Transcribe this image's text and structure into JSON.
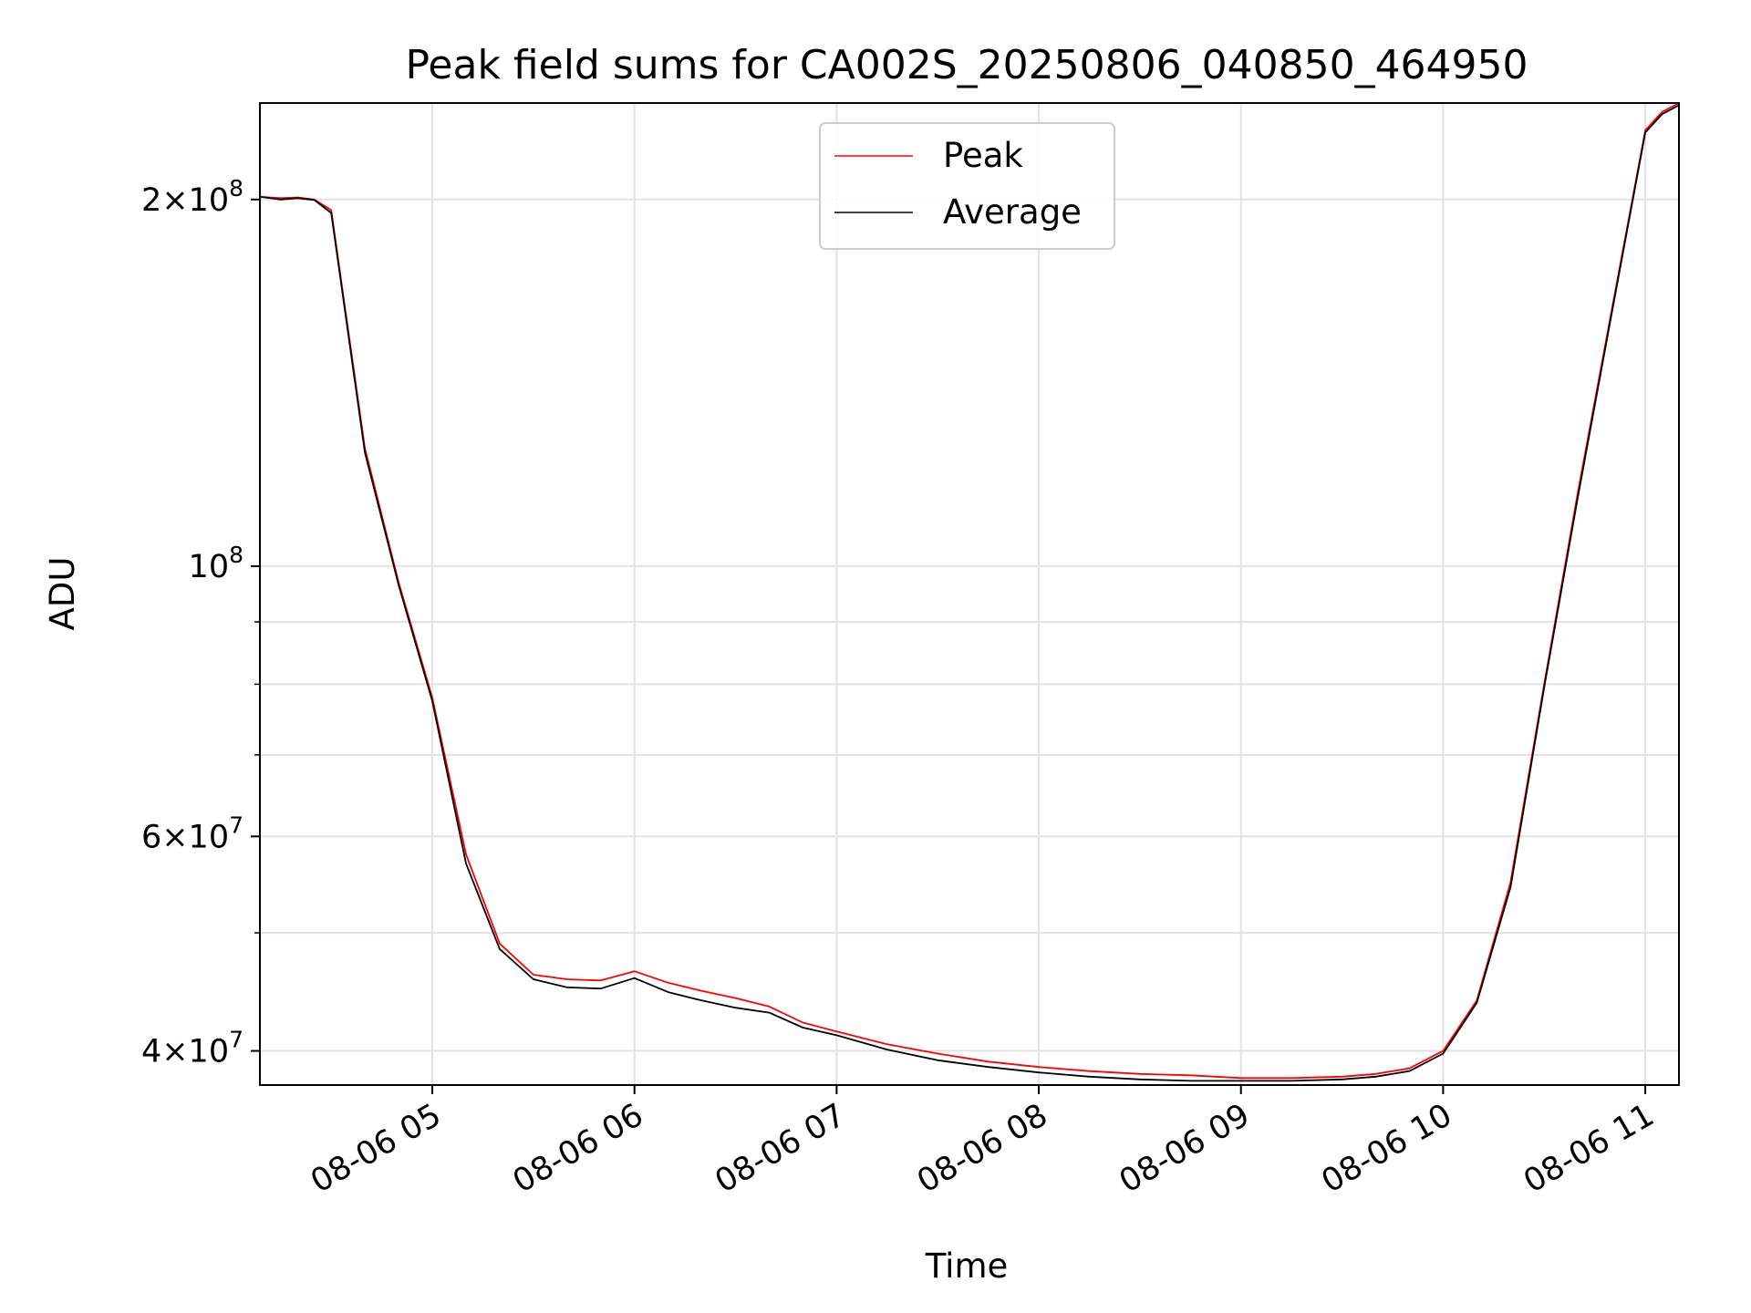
{
  "chart_data": {
    "type": "line",
    "title": "Peak field sums for CA002S_20250806_040850_464950",
    "xlabel": "Time",
    "ylabel": "ADU",
    "yscale": "log",
    "grid": true,
    "legend_position": "top-center",
    "xlim": [
      "2025-08-06 04:08:50",
      "2025-08-06 11:10:00"
    ],
    "ylim": [
      37500000,
      240000000
    ],
    "x_tick_labels": [
      "08-06 05",
      "08-06 06",
      "08-06 07",
      "08-06 08",
      "08-06 09",
      "08-06 10",
      "08-06 11"
    ],
    "y_ticks": [
      {
        "value": 40000000,
        "mantissa": "4",
        "exp": "7"
      },
      {
        "value": 60000000,
        "mantissa": "6",
        "exp": "7"
      },
      {
        "value": 100000000,
        "mantissa": "",
        "exp": "8"
      },
      {
        "value": 200000000,
        "mantissa": "2",
        "exp": "8"
      }
    ],
    "x_times": [
      "04:09",
      "04:15",
      "04:20",
      "04:25",
      "04:30",
      "04:40",
      "04:50",
      "05:00",
      "05:10",
      "05:20",
      "05:30",
      "05:40",
      "05:50",
      "06:00",
      "06:10",
      "06:20",
      "06:30",
      "06:40",
      "06:50",
      "07:00",
      "07:15",
      "07:30",
      "07:45",
      "08:00",
      "08:15",
      "08:30",
      "08:45",
      "09:00",
      "09:15",
      "09:30",
      "09:40",
      "09:50",
      "10:00",
      "10:10",
      "10:20",
      "10:30",
      "10:40",
      "10:50",
      "11:00",
      "11:05",
      "11:10"
    ],
    "series": [
      {
        "name": "Peak",
        "color": "#ff0000",
        "values": [
          201000000,
          200500000,
          200800000,
          200000000,
          196000000,
          125000000,
          97000000,
          78000000,
          58000000,
          49000000,
          46200000,
          45800000,
          45700000,
          46500000,
          45500000,
          44800000,
          44200000,
          43500000,
          42200000,
          41500000,
          40500000,
          39800000,
          39200000,
          38800000,
          38500000,
          38300000,
          38200000,
          38000000,
          38000000,
          38100000,
          38300000,
          38700000,
          40000000,
          44000000,
          55000000,
          80000000,
          115000000,
          162000000,
          228000000,
          236000000,
          240000000
        ]
      },
      {
        "name": "Average",
        "color": "#000000",
        "values": [
          201000000,
          200000000,
          200500000,
          199800000,
          195000000,
          124000000,
          96500000,
          77500000,
          57000000,
          48500000,
          45800000,
          45100000,
          45000000,
          45900000,
          44700000,
          44000000,
          43400000,
          43000000,
          41800000,
          41200000,
          40100000,
          39300000,
          38800000,
          38400000,
          38100000,
          37900000,
          37800000,
          37800000,
          37800000,
          37900000,
          38100000,
          38500000,
          39800000,
          43800000,
          54500000,
          79500000,
          114000000,
          161000000,
          227000000,
          235000000,
          239000000
        ]
      }
    ]
  }
}
